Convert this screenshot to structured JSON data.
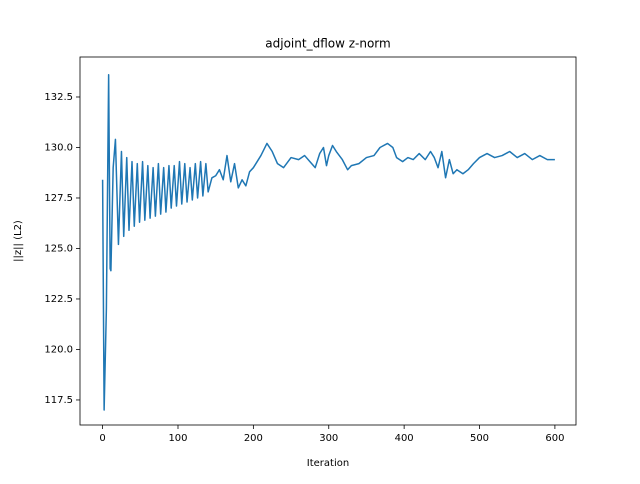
{
  "chart_data": {
    "type": "line",
    "title": "adjoint_dflow z-norm",
    "xlabel": "Iteration",
    "ylabel": "||z|| (L2)",
    "x": [
      0,
      2,
      5,
      8,
      10,
      11,
      14,
      17,
      21,
      25,
      28,
      32,
      35,
      39,
      42,
      46,
      49,
      53,
      56,
      60,
      63,
      67,
      70,
      74,
      77,
      81,
      84,
      88,
      91,
      95,
      98,
      102,
      105,
      109,
      112,
      116,
      119,
      123,
      126,
      130,
      133,
      137,
      140,
      145,
      150,
      155,
      160,
      165,
      170,
      175,
      180,
      185,
      190,
      195,
      200,
      210,
      218,
      225,
      232,
      240,
      250,
      260,
      268,
      275,
      282,
      288,
      293,
      297,
      300,
      305,
      310,
      318,
      325,
      330,
      340,
      350,
      360,
      368,
      378,
      385,
      390,
      398,
      405,
      412,
      420,
      428,
      435,
      440,
      445,
      450,
      455,
      460,
      465,
      470,
      478,
      485,
      492,
      500,
      510,
      520,
      530,
      540,
      550,
      560,
      570,
      580,
      590,
      600
    ],
    "series": [
      {
        "color": "#1f77b4",
        "values": [
          128.4,
          117.0,
          122,
          133.6,
          124.0,
          123.9,
          129,
          130.4,
          125.2,
          129.8,
          125.6,
          129.5,
          125.9,
          129.3,
          126.1,
          129.2,
          126.3,
          129.3,
          126.4,
          129.1,
          126.5,
          129.0,
          126.6,
          129.2,
          126.7,
          129.0,
          126.8,
          129.1,
          127.0,
          129.1,
          127.1,
          129.3,
          127.2,
          129.2,
          127.3,
          129.0,
          127.4,
          129.2,
          127.5,
          129.3,
          127.6,
          129.2,
          127.8,
          128.5,
          128.6,
          128.9,
          128.4,
          129.6,
          128.3,
          129.2,
          128.0,
          128.4,
          128.1,
          128.8,
          129.0,
          129.6,
          130.2,
          129.8,
          129.2,
          129.0,
          129.5,
          129.4,
          129.6,
          129.3,
          129.0,
          129.7,
          130.0,
          129.1,
          129.6,
          130.1,
          129.8,
          129.4,
          128.9,
          129.1,
          129.2,
          129.5,
          129.6,
          130.0,
          130.2,
          130.0,
          129.5,
          129.3,
          129.5,
          129.4,
          129.7,
          129.4,
          129.8,
          129.5,
          129.0,
          129.8,
          128.5,
          129.4,
          128.7,
          128.9,
          128.7,
          128.9,
          129.2,
          129.5,
          129.7,
          129.5,
          129.6,
          129.8,
          129.5,
          129.7,
          129.4,
          129.6,
          129.4,
          129.4
        ]
      }
    ],
    "xlim": [
      -30,
      628
    ],
    "ylim": [
      116.26,
      134.48
    ],
    "xticks": [
      0,
      100,
      200,
      300,
      400,
      500,
      600
    ],
    "yticks": [
      117.5,
      {
        "value": 120,
        "label": "120.0"
      },
      122.5,
      {
        "value": 125,
        "label": "125.0"
      },
      127.5,
      {
        "value": 130,
        "label": "130.0"
      },
      132.5
    ]
  }
}
